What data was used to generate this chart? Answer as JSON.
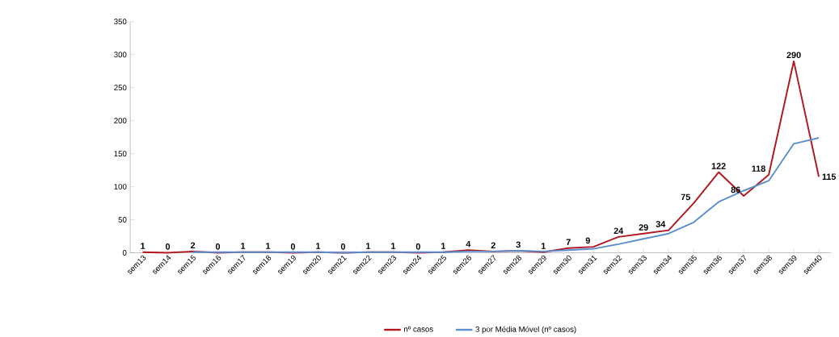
{
  "chart_data": {
    "type": "line",
    "categories": [
      "sem13",
      "sem14",
      "sem15",
      "sem16",
      "sem17",
      "sem18",
      "sem19",
      "sem20",
      "sem21",
      "sem22",
      "sem23",
      "sem24",
      "sem25",
      "sem26",
      "sem27",
      "sem28",
      "sem29",
      "sem30",
      "sem31",
      "sem32",
      "sem33",
      "sem34",
      "sem35",
      "sem36",
      "sem37",
      "sem38",
      "sem39",
      "sem40"
    ],
    "series": [
      {
        "name": "nº casos",
        "color": "#b2161e",
        "values": [
          1,
          0,
          2,
          0,
          1,
          1,
          0,
          1,
          0,
          1,
          1,
          0,
          1,
          4,
          2,
          3,
          1,
          7,
          9,
          24,
          29,
          34,
          75,
          122,
          86,
          118,
          290,
          115
        ],
        "value_labels": [
          "1",
          "0",
          "2",
          "0",
          "1",
          "1",
          "0",
          "1",
          "0",
          "1",
          "1",
          "0",
          "1",
          "4",
          "2",
          "3",
          "1",
          "7",
          "9",
          "24",
          "29",
          "34",
          "75",
          "122",
          "86",
          "118",
          "290",
          "115"
        ]
      },
      {
        "name": "3 por Média Móvel (nº casos)",
        "color": "#5b8fd0",
        "values": [
          null,
          null,
          1,
          1,
          1,
          1,
          1,
          1,
          0,
          1,
          1,
          1,
          1,
          2,
          2,
          3,
          2,
          4,
          6,
          13,
          21,
          29,
          46,
          77,
          94,
          109,
          165,
          174
        ]
      }
    ],
    "ylim": [
      0,
      350
    ],
    "yticks": [
      0,
      50,
      100,
      150,
      200,
      250,
      300,
      350
    ],
    "grid": false,
    "legend": "bottom",
    "marker": "none",
    "line_style": "solid"
  }
}
